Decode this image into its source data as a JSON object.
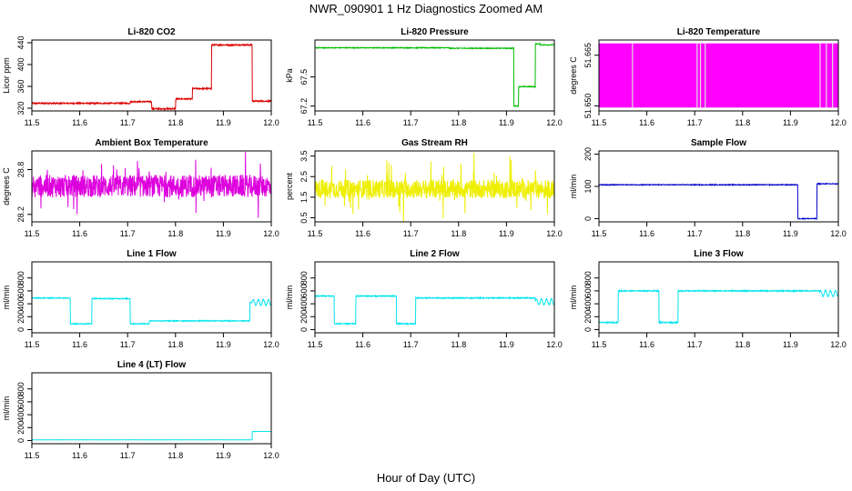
{
  "page": {
    "title": "NWR_090901  1 Hz Diagnostics Zoomed AM",
    "xlabel": "Hour of Day (UTC)"
  },
  "chart_data": [
    {
      "type": "line",
      "title": "Li-820 CO2",
      "ylabel": "Licor ppm",
      "color": "#dd0000",
      "xlim": [
        11.5,
        12.0
      ],
      "ylim": [
        315,
        445
      ],
      "xticks": [
        "11.5",
        "11.6",
        "11.7",
        "11.8",
        "11.9",
        "12.0"
      ],
      "yticks": [
        320,
        360,
        400,
        440
      ],
      "segments": [
        [
          11.5,
          11.705,
          329
        ],
        [
          11.705,
          11.75,
          332
        ],
        [
          11.75,
          11.8,
          319
        ],
        [
          11.8,
          11.835,
          337
        ],
        [
          11.835,
          11.875,
          356
        ],
        [
          11.875,
          11.96,
          436
        ],
        [
          11.96,
          12.0,
          333
        ]
      ],
      "noise": 1.2
    },
    {
      "type": "line",
      "title": "Li-820 Pressure",
      "ylabel": "kPa",
      "color": "#00bb00",
      "xlim": [
        11.5,
        12.0
      ],
      "ylim": [
        67.15,
        67.88
      ],
      "xticks": [
        "11.5",
        "11.6",
        "11.7",
        "11.8",
        "11.9",
        "12.0"
      ],
      "yticks": [
        67.2,
        67.5
      ],
      "segments": [
        [
          11.5,
          11.78,
          67.8
        ],
        [
          11.78,
          11.915,
          67.795
        ],
        [
          11.915,
          11.925,
          67.2
        ],
        [
          11.925,
          11.96,
          67.4
        ],
        [
          11.96,
          11.97,
          67.84
        ],
        [
          11.97,
          12.0,
          67.83
        ]
      ],
      "noise": 0.004
    },
    {
      "type": "line",
      "title": "Li-820 Temperature",
      "ylabel": "degrees C",
      "color": "#ff00ff",
      "xlim": [
        11.5,
        12.0
      ],
      "ylim": [
        51.6485,
        51.6695
      ],
      "xticks": [
        "11.5",
        "11.6",
        "11.7",
        "11.8",
        "11.9",
        "12.0"
      ],
      "yticks": [
        51.65,
        51.665
      ],
      "yticklabels": [
        "51.650",
        "51.665"
      ],
      "band": [
        51.6495,
        51.6685
      ],
      "gaps": [
        11.57,
        11.705,
        11.712,
        11.722,
        11.962,
        11.975,
        11.988
      ]
    },
    {
      "type": "line",
      "title": "Ambient Box Temperature",
      "ylabel": "degrees C",
      "color": "#dd00dd",
      "xlim": [
        11.5,
        12.0
      ],
      "ylim": [
        28.1,
        29.05
      ],
      "xticks": [
        "11.5",
        "11.6",
        "11.7",
        "11.8",
        "11.9",
        "12.0"
      ],
      "yticks": [
        28.2,
        28.8
      ],
      "segments": [
        [
          11.5,
          12.0,
          28.58
        ]
      ],
      "noise": 0.15,
      "spikes": 0.32
    },
    {
      "type": "line",
      "title": "Gas Stream RH",
      "ylabel": "percent",
      "color": "#eeee00",
      "xlim": [
        11.5,
        12.0
      ],
      "ylim": [
        0.3,
        3.75
      ],
      "xticks": [
        "11.5",
        "11.6",
        "11.7",
        "11.8",
        "11.9",
        "12.0"
      ],
      "yticks": [
        0.5,
        1.5,
        2.5,
        3.5
      ],
      "segments": [
        [
          11.5,
          12.0,
          1.9
        ]
      ],
      "noise": 0.45,
      "spikes": 1.4
    },
    {
      "type": "line",
      "title": "Sample Flow",
      "ylabel": "ml/min",
      "color": "#0000cc",
      "xlim": [
        11.5,
        12.0
      ],
      "ylim": [
        -10,
        210
      ],
      "xticks": [
        "11.5",
        "11.6",
        "11.7",
        "11.8",
        "11.9",
        "12.0"
      ],
      "yticks": [
        0,
        100,
        200
      ],
      "segments": [
        [
          11.5,
          11.915,
          105
        ],
        [
          11.915,
          11.955,
          0
        ],
        [
          11.955,
          12.0,
          108
        ]
      ],
      "noise": 1.2
    },
    {
      "type": "line",
      "title": "Line 1 Flow",
      "ylabel": "ml/min",
      "color": "#00e5ee",
      "xlim": [
        11.5,
        12.0
      ],
      "ylim": [
        -50,
        1050
      ],
      "xticks": [
        "11.5",
        "11.6",
        "11.7",
        "11.8",
        "11.9",
        "12.0"
      ],
      "yticks": [
        0,
        200,
        400,
        600,
        800
      ],
      "segments": [
        [
          11.5,
          11.58,
          490
        ],
        [
          11.58,
          11.625,
          90
        ],
        [
          11.625,
          11.705,
          480
        ],
        [
          11.705,
          11.745,
          90
        ],
        [
          11.745,
          11.955,
          135
        ],
        [
          11.955,
          12.0,
          420
        ]
      ],
      "noise": 7,
      "wave_from": 11.96
    },
    {
      "type": "line",
      "title": "Line 2 Flow",
      "ylabel": "ml/min",
      "color": "#00e5ee",
      "xlim": [
        11.5,
        12.0
      ],
      "ylim": [
        -50,
        1050
      ],
      "xticks": [
        "11.5",
        "11.6",
        "11.7",
        "11.8",
        "11.9",
        "12.0"
      ],
      "yticks": [
        0,
        200,
        400,
        600,
        800
      ],
      "segments": [
        [
          11.5,
          11.54,
          520
        ],
        [
          11.54,
          11.585,
          90
        ],
        [
          11.585,
          11.67,
          520
        ],
        [
          11.67,
          11.71,
          90
        ],
        [
          11.71,
          11.96,
          490
        ],
        [
          11.96,
          12.0,
          430
        ]
      ],
      "noise": 8,
      "wave_from": 11.96
    },
    {
      "type": "line",
      "title": "Line 3 Flow",
      "ylabel": "ml/min",
      "color": "#00e5ee",
      "xlim": [
        11.5,
        12.0
      ],
      "ylim": [
        -50,
        1050
      ],
      "xticks": [
        "11.5",
        "11.6",
        "11.7",
        "11.8",
        "11.9",
        "12.0"
      ],
      "yticks": [
        0,
        200,
        400,
        600,
        800
      ],
      "segments": [
        [
          11.5,
          11.54,
          110
        ],
        [
          11.54,
          11.625,
          600
        ],
        [
          11.625,
          11.665,
          110
        ],
        [
          11.665,
          11.96,
          600
        ],
        [
          11.96,
          12.0,
          560
        ]
      ],
      "noise": 8,
      "wave_from": 11.96
    },
    {
      "type": "line",
      "title": "Line 4 (LT) Flow",
      "ylabel": "ml/min",
      "color": "#00e5ee",
      "xlim": [
        11.5,
        12.0
      ],
      "ylim": [
        -50,
        1050
      ],
      "xticks": [
        "11.5",
        "11.6",
        "11.7",
        "11.8",
        "11.9",
        "12.0"
      ],
      "yticks": [
        0,
        200,
        400,
        600,
        800
      ],
      "segments": [
        [
          11.5,
          11.96,
          10
        ],
        [
          11.96,
          12.0,
          140
        ]
      ],
      "noise": 1
    }
  ]
}
